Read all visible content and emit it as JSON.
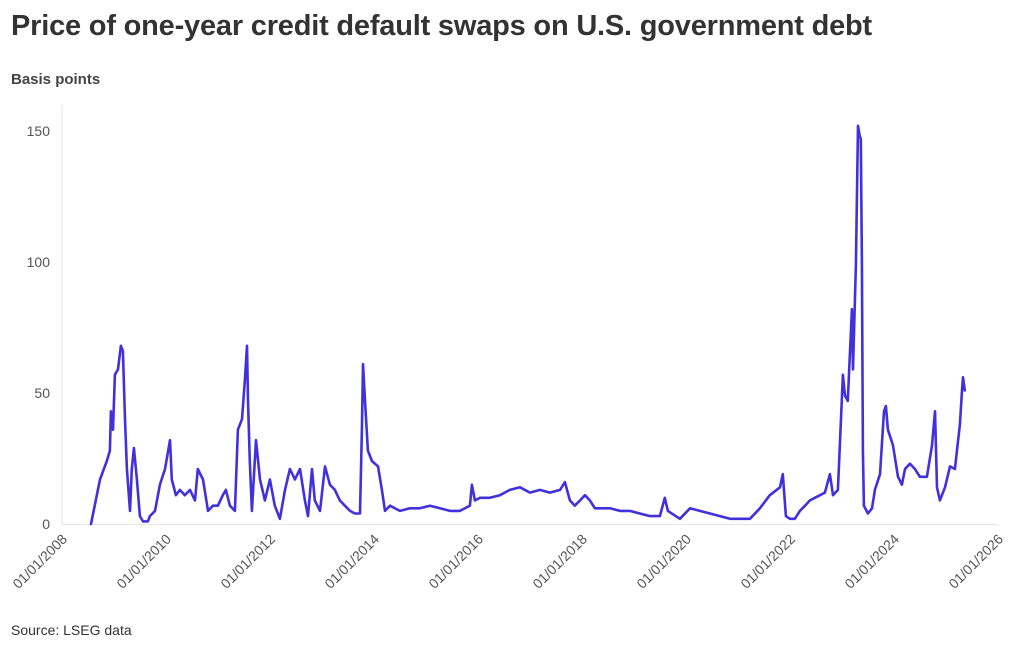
{
  "title": "Price of one-year credit default swaps on U.S. government debt",
  "source": "Source: LSEG data",
  "chart_data": {
    "type": "line",
    "title": "Price of one-year credit default swaps on U.S. government debt",
    "ylabel": "Basis points",
    "xlabel": "",
    "xlim": [
      "2008-01-01",
      "2026-01-01"
    ],
    "ylim": [
      0,
      155
    ],
    "yticks": [
      0,
      50,
      100,
      150
    ],
    "xticks": [
      "01/01/2008",
      "01/01/2010",
      "01/01/2012",
      "01/01/2014",
      "01/01/2016",
      "01/01/2018",
      "01/01/2020",
      "01/01/2022",
      "01/01/2024",
      "01/01/2026"
    ],
    "grid": false,
    "line_color": "#4330dd",
    "series": [
      {
        "x": [
          "2008-07-08",
          "2008-09-10",
          "2008-10-28",
          "2008-11-19",
          "2008-11-26",
          "2008-12-10",
          "2008-12-24",
          "2009-01-15",
          "2009-02-05",
          "2009-02-19",
          "2009-03-03",
          "2009-03-17",
          "2009-04-08",
          "2009-04-21",
          "2009-05-05",
          "2009-05-26",
          "2009-06-17",
          "2009-07-08",
          "2009-08-12",
          "2009-08-26",
          "2009-10-01",
          "2009-11-05",
          "2009-12-10",
          "2010-01-15",
          "2010-01-28",
          "2010-02-26",
          "2010-03-24",
          "2010-04-28",
          "2010-06-03",
          "2010-07-08",
          "2010-07-28",
          "2010-09-03",
          "2010-10-08",
          "2010-11-12",
          "2010-12-17",
          "2011-01-21",
          "2011-02-12",
          "2011-03-10",
          "2011-04-14",
          "2011-05-05",
          "2011-06-03",
          "2011-06-24",
          "2011-07-08",
          "2011-07-15",
          "2011-07-28",
          "2011-08-12",
          "2011-09-10",
          "2011-10-08",
          "2011-11-12",
          "2011-12-17",
          "2012-01-21",
          "2012-02-26",
          "2012-04-01",
          "2012-05-05",
          "2012-06-10",
          "2012-07-15",
          "2012-08-19",
          "2012-09-10",
          "2012-10-08",
          "2012-10-28",
          "2012-12-03",
          "2013-01-08",
          "2013-02-12",
          "2013-03-17",
          "2013-04-21",
          "2013-05-26",
          "2013-07-01",
          "2013-08-05",
          "2013-09-10",
          "2013-09-24",
          "2013-10-01",
          "2013-10-15",
          "2013-11-05",
          "2013-12-03",
          "2014-01-15",
          "2014-02-12",
          "2014-03-03",
          "2014-04-08",
          "2014-06-17",
          "2014-08-26",
          "2014-11-05",
          "2015-01-15",
          "2015-03-24",
          "2015-06-03",
          "2015-08-12",
          "2015-10-21",
          "2015-11-05",
          "2015-11-26",
          "2016-01-01",
          "2016-03-10",
          "2016-05-19",
          "2016-07-28",
          "2016-10-08",
          "2016-12-17",
          "2017-02-26",
          "2017-05-05",
          "2017-07-15",
          "2017-08-19",
          "2017-09-24",
          "2017-10-28",
          "2017-12-03",
          "2018-01-08",
          "2018-02-12",
          "2018-03-17",
          "2018-07-01",
          "2018-09-10",
          "2018-11-19",
          "2019-01-28",
          "2019-04-08",
          "2019-06-17",
          "2019-07-21",
          "2019-08-12",
          "2019-11-05",
          "2020-01-15",
          "2020-03-24",
          "2020-06-03",
          "2020-08-12",
          "2020-10-21",
          "2021-01-01",
          "2021-03-10",
          "2021-05-19",
          "2021-07-28",
          "2021-10-08",
          "2021-10-28",
          "2021-11-19",
          "2021-12-17",
          "2022-01-21",
          "2022-02-26",
          "2022-04-01",
          "2022-05-05",
          "2022-06-10",
          "2022-07-15",
          "2022-08-19",
          "2022-09-24",
          "2022-10-15",
          "2022-11-19",
          "2022-12-24",
          "2023-01-08",
          "2023-01-28",
          "2023-02-26",
          "2023-03-03",
          "2023-03-24",
          "2023-04-08",
          "2023-04-21",
          "2023-04-28",
          "2023-05-05",
          "2023-05-12",
          "2023-05-19",
          "2023-06-17",
          "2023-07-15",
          "2023-08-05",
          "2023-09-10",
          "2023-10-08",
          "2023-10-21",
          "2023-11-05",
          "2023-12-10",
          "2024-01-15",
          "2024-02-12",
          "2024-03-03",
          "2024-04-08",
          "2024-05-12",
          "2024-06-17",
          "2024-08-05",
          "2024-09-10",
          "2024-10-01",
          "2024-10-15",
          "2024-11-05",
          "2024-12-10",
          "2025-01-15",
          "2025-02-19",
          "2025-03-24",
          "2025-04-08",
          "2025-04-15",
          "2025-04-28"
        ],
        "y": [
          0,
          17,
          24,
          28,
          43,
          36,
          57,
          59,
          68,
          66,
          40,
          21,
          5,
          21,
          29,
          17,
          3,
          1,
          1,
          3,
          5,
          15,
          21,
          32,
          17,
          11,
          13,
          11,
          13,
          9,
          21,
          17,
          5,
          7,
          7,
          11,
          13,
          7,
          5,
          36,
          40,
          55,
          68,
          47,
          24,
          5,
          32,
          17,
          9,
          17,
          7,
          2,
          13,
          21,
          17,
          21,
          9,
          3,
          21,
          9,
          5,
          22,
          15,
          13,
          9,
          7,
          5,
          4,
          4,
          36,
          61,
          47,
          28,
          24,
          22,
          13,
          5,
          7,
          5,
          6,
          6,
          7,
          6,
          5,
          5,
          7,
          15,
          9,
          10,
          10,
          11,
          13,
          14,
          12,
          13,
          12,
          13,
          16,
          9,
          7,
          9,
          11,
          9,
          6,
          6,
          5,
          5,
          4,
          3,
          3,
          10,
          5,
          2,
          6,
          5,
          4,
          3,
          2,
          2,
          2,
          6,
          11,
          14,
          19,
          3,
          2,
          2,
          5,
          7,
          9,
          10,
          11,
          12,
          19,
          11,
          13,
          57,
          49,
          47,
          82,
          59,
          99,
          152,
          148,
          147,
          100,
          28,
          7,
          4,
          6,
          13,
          19,
          43,
          45,
          36,
          30,
          18,
          15,
          21,
          23,
          21,
          18,
          18,
          30,
          43,
          14,
          9,
          14,
          22,
          21,
          38,
          51,
          56,
          51
        ]
      }
    ]
  }
}
